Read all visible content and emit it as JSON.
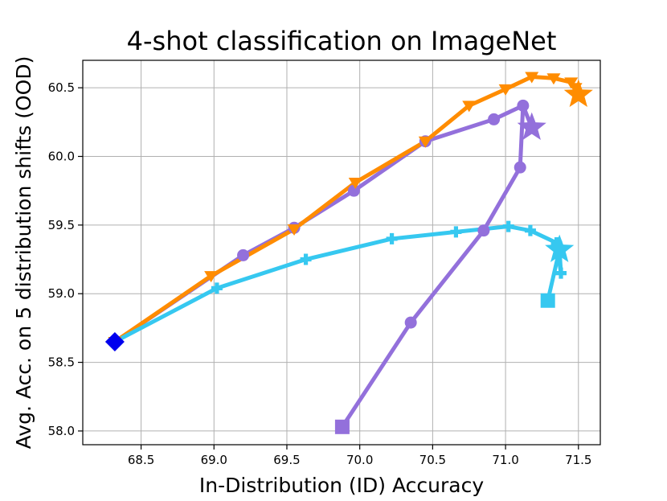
{
  "chart_data": {
    "type": "line",
    "title": "4-shot classification on ImageNet",
    "xlabel": "In-Distribution (ID) Accuracy",
    "ylabel": "Avg. Acc. on 5 distribution shifts (OOD)",
    "xlim": [
      68.1,
      71.65
    ],
    "ylim": [
      57.9,
      60.7
    ],
    "xticks": [
      "68.5",
      "69.0",
      "69.5",
      "70.0",
      "70.5",
      "71.0",
      "71.5"
    ],
    "yticks": [
      "58.0",
      "58.5",
      "59.0",
      "59.5",
      "60.0",
      "60.5"
    ],
    "grid": true,
    "series": [
      {
        "color": "#9370DB",
        "marker": "circle",
        "x": [
          68.32,
          69.2,
          69.55,
          69.96,
          70.45,
          70.92,
          71.12,
          71.1,
          70.85,
          70.35
        ],
        "y": [
          58.65,
          59.28,
          59.48,
          59.75,
          60.11,
          60.27,
          60.37,
          59.92,
          59.46,
          58.79
        ]
      },
      {
        "color": "#FF8C00",
        "marker": "triangle-down",
        "x": [
          68.32,
          68.98,
          69.55,
          69.97,
          70.45,
          70.75,
          71.0,
          71.18,
          71.33,
          71.45,
          71.48
        ],
        "y": [
          58.65,
          59.13,
          59.47,
          59.81,
          60.11,
          60.37,
          60.49,
          60.58,
          60.57,
          60.54,
          60.5
        ]
      },
      {
        "color": "#36C8F0",
        "marker": "plus",
        "x": [
          68.32,
          69.02,
          69.63,
          70.22,
          70.66,
          71.02,
          71.17,
          71.35,
          71.38
        ],
        "y": [
          58.65,
          59.04,
          59.25,
          59.4,
          59.45,
          59.49,
          59.46,
          59.37,
          59.15
        ]
      }
    ],
    "segments": [
      {
        "color": "#9370DB",
        "x": [
          70.35,
          69.88
        ],
        "y": [
          58.79,
          58.03
        ]
      },
      {
        "color": "#9370DB",
        "x": [
          71.12,
          71.18
        ],
        "y": [
          60.37,
          60.21
        ]
      },
      {
        "color": "#FF8C00",
        "x": [
          71.48,
          71.5
        ],
        "y": [
          60.5,
          60.45
        ]
      },
      {
        "color": "#36C8F0",
        "x": [
          71.38,
          71.37,
          71.29
        ],
        "y": [
          59.15,
          59.32,
          58.95
        ]
      }
    ],
    "special_points": [
      {
        "marker": "diamond",
        "color": "#0000EE",
        "x": 68.32,
        "y": 58.65
      },
      {
        "marker": "square",
        "color": "#9370DB",
        "x": 69.88,
        "y": 58.03
      },
      {
        "marker": "star",
        "color": "#9370DB",
        "x": 71.18,
        "y": 60.21
      },
      {
        "marker": "star",
        "color": "#FF8C00",
        "x": 71.5,
        "y": 60.45
      },
      {
        "marker": "square",
        "color": "#36C8F0",
        "x": 71.29,
        "y": 58.95
      },
      {
        "marker": "star",
        "color": "#36C8F0",
        "x": 71.37,
        "y": 59.32
      }
    ]
  }
}
